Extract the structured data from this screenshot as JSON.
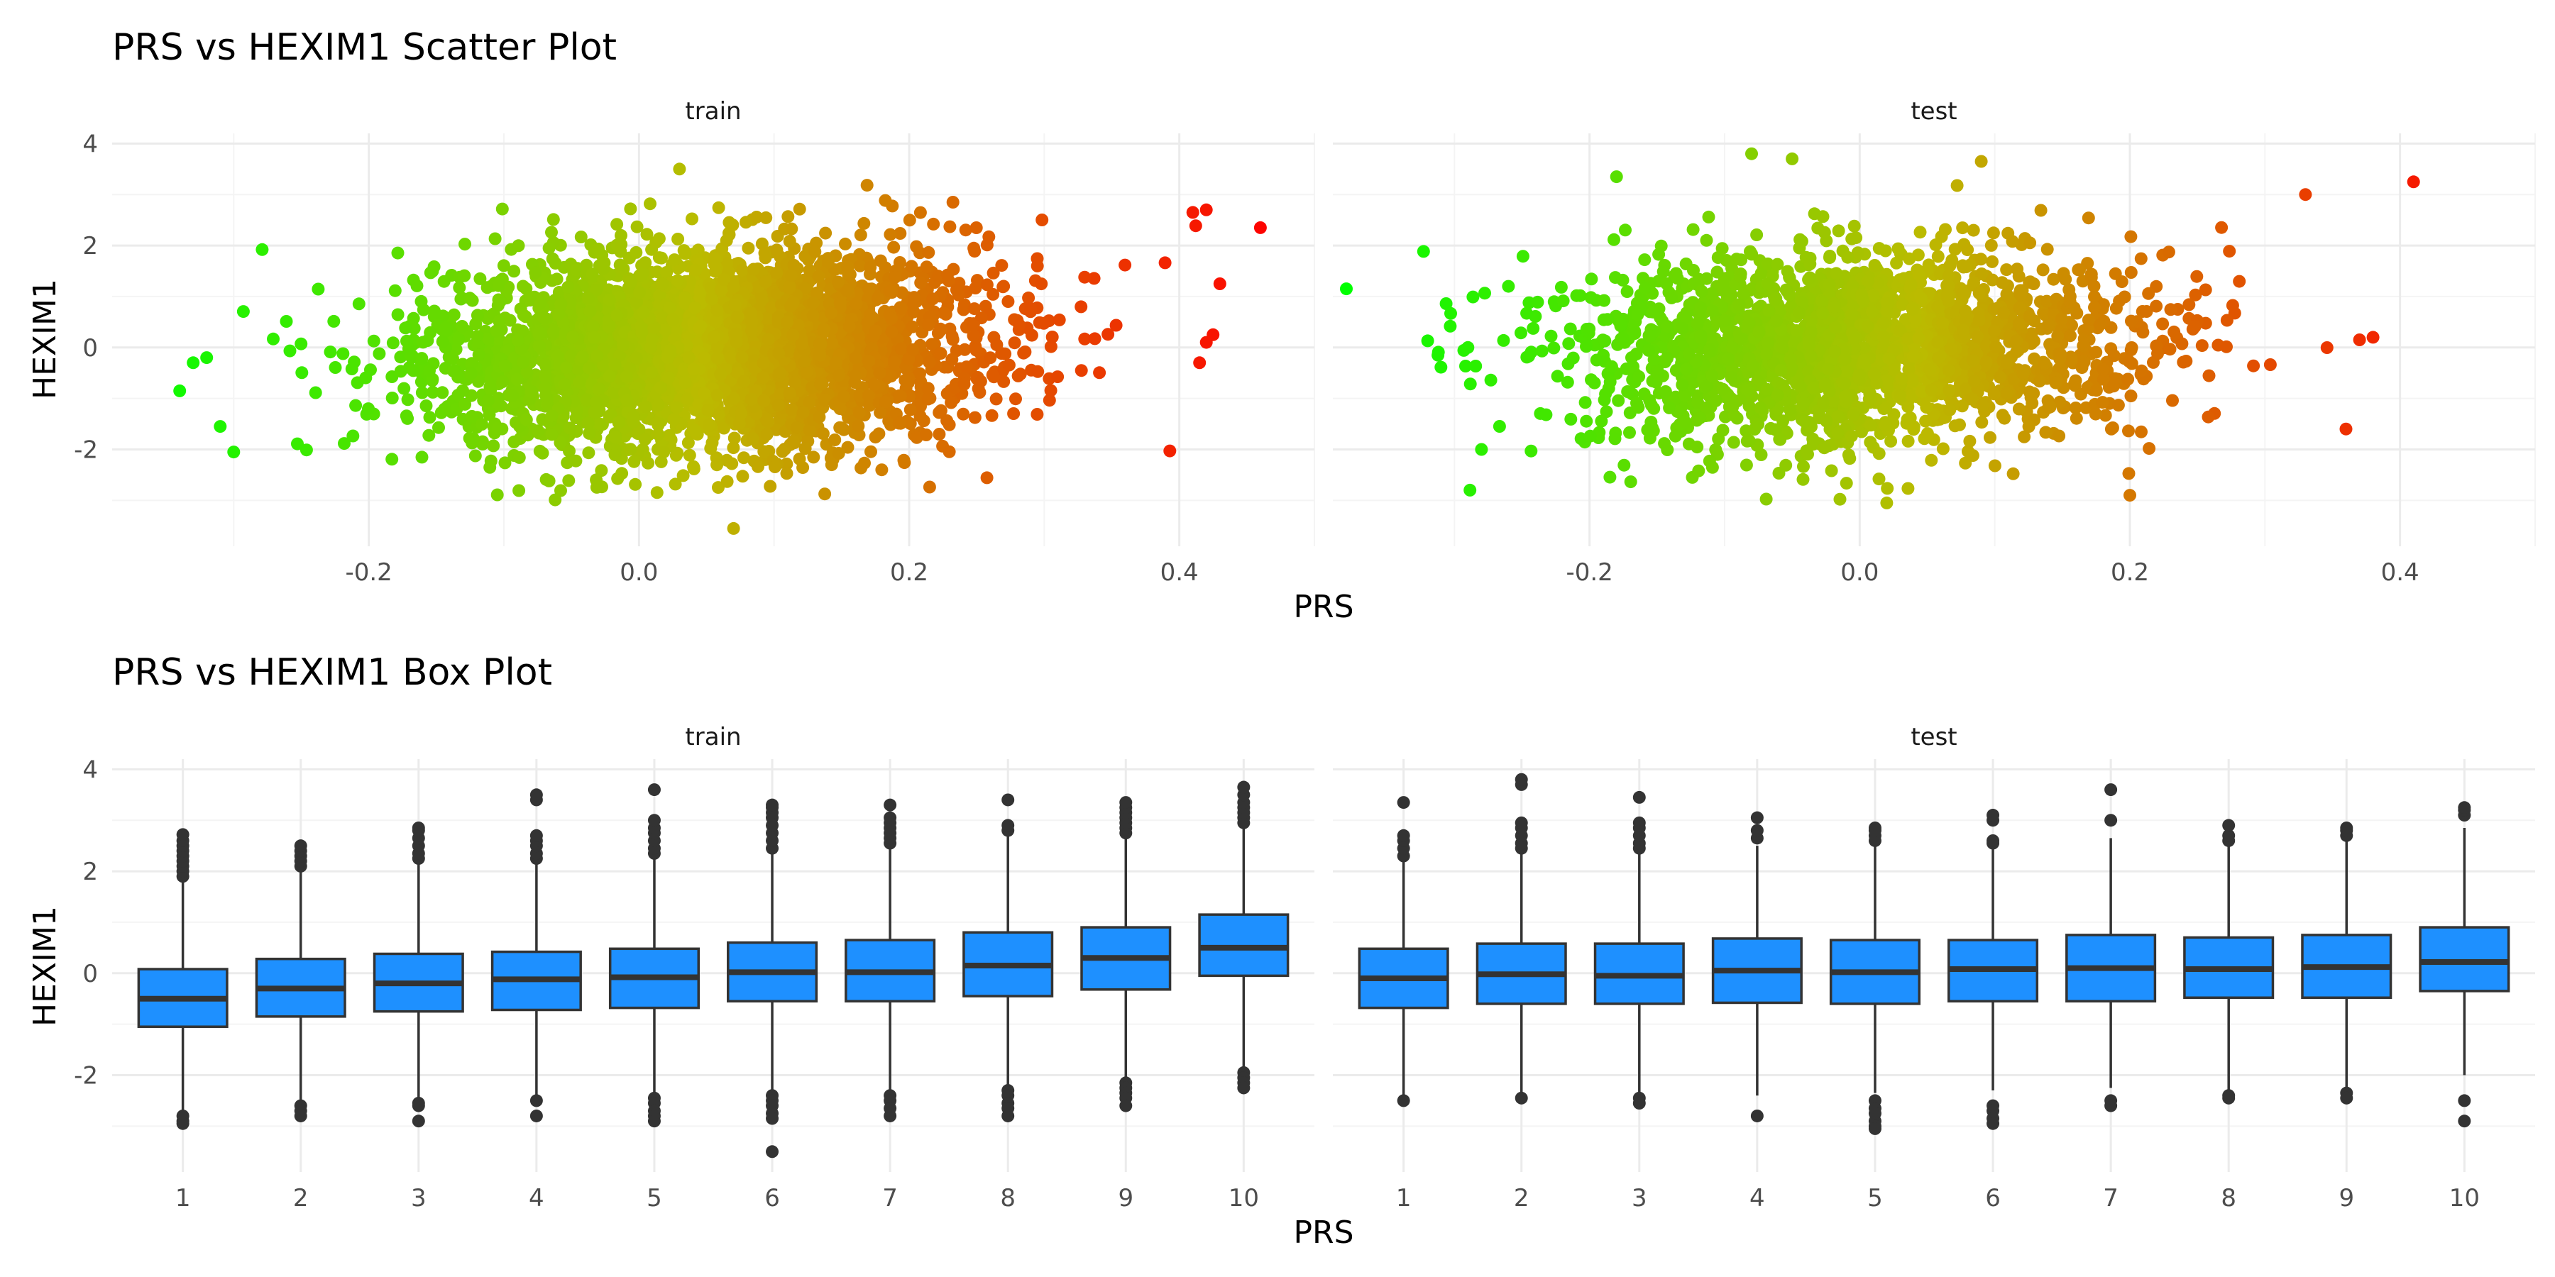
{
  "colors": {
    "box_fill": "#1E90FF",
    "box_line": "#333333",
    "gradient_low": "#00FF00",
    "gradient_mid": "#BBBB00",
    "gradient_high": "#FF0000",
    "grid_major": "#EBEBEB",
    "grid_minor": "#F4F4F4"
  },
  "chart_data": [
    {
      "type": "scatter",
      "title": "PRS vs HEXIM1 Scatter Plot",
      "xlabel": "PRS",
      "ylabel": "HEXIM1",
      "xlim": [
        -0.39,
        0.5
      ],
      "ylim": [
        -3.9,
        4.2
      ],
      "xticks": [
        -0.2,
        0.0,
        0.2,
        0.4
      ],
      "xtick_labels": [
        "-0.2",
        "0.0",
        "0.2",
        "0.4"
      ],
      "yticks": [
        -2,
        0,
        2,
        4
      ],
      "ytick_labels": [
        "-2",
        "0",
        "2",
        "4"
      ],
      "color_by": "PRS",
      "grid": true,
      "legend": "none",
      "panels": [
        {
          "label": "train",
          "cloud": {
            "x_mean": 0.05,
            "x_sd": 0.1,
            "y_mean": 0.0,
            "y_sd": 0.95,
            "slope": 2.5,
            "n": 3600
          },
          "outliers": [
            [
              -0.33,
              -0.3
            ],
            [
              -0.32,
              -0.2
            ],
            [
              -0.34,
              -0.85
            ],
            [
              -0.31,
              -1.55
            ],
            [
              -0.3,
              -2.05
            ],
            [
              0.07,
              -3.55
            ],
            [
              0.46,
              2.35
            ],
            [
              0.42,
              2.7
            ],
            [
              0.41,
              2.65
            ],
            [
              0.425,
              0.25
            ],
            [
              0.42,
              0.1
            ],
            [
              0.415,
              -0.3
            ],
            [
              0.43,
              1.25
            ],
            [
              0.03,
              3.5
            ]
          ]
        },
        {
          "label": "test",
          "cloud": {
            "x_mean": 0.0,
            "x_sd": 0.1,
            "y_mean": 0.0,
            "y_sd": 0.95,
            "slope": 1.5,
            "n": 2200
          },
          "outliers": [
            [
              -0.38,
              1.15
            ],
            [
              -0.29,
              0.0
            ],
            [
              -0.28,
              -2.0
            ],
            [
              -0.26,
              1.2
            ],
            [
              -0.18,
              3.35
            ],
            [
              -0.08,
              3.8
            ],
            [
              -0.05,
              3.7
            ],
            [
              0.09,
              3.65
            ],
            [
              0.41,
              3.25
            ],
            [
              0.33,
              3.0
            ],
            [
              0.38,
              0.2
            ],
            [
              0.37,
              0.15
            ],
            [
              0.36,
              -1.6
            ],
            [
              0.2,
              -2.9
            ],
            [
              0.02,
              -3.05
            ]
          ]
        }
      ]
    },
    {
      "type": "box",
      "title": "PRS vs HEXIM1 Box Plot",
      "xlabel": "PRS",
      "ylabel": "HEXIM1",
      "categories": [
        "1",
        "2",
        "3",
        "4",
        "5",
        "6",
        "7",
        "8",
        "9",
        "10"
      ],
      "ylim": [
        -3.9,
        4.2
      ],
      "yticks": [
        -2,
        0,
        2,
        4
      ],
      "ytick_labels": [
        "-2",
        "0",
        "2",
        "4"
      ],
      "grid": true,
      "legend": "none",
      "panels": [
        {
          "label": "train",
          "boxes": [
            {
              "q1": -1.05,
              "median": -0.5,
              "q3": 0.08,
              "lower": -2.75,
              "upper": 1.78,
              "outliers": [
                1.9,
                2.0,
                2.1,
                2.2,
                2.3,
                2.4,
                2.5,
                2.6,
                2.72,
                -2.8,
                -2.9,
                -2.95
              ]
            },
            {
              "q1": -0.85,
              "median": -0.3,
              "q3": 0.28,
              "lower": -2.55,
              "upper": 2.0,
              "outliers": [
                2.1,
                2.2,
                2.3,
                2.4,
                2.5,
                -2.6,
                -2.7,
                -2.8
              ]
            },
            {
              "q1": -0.75,
              "median": -0.2,
              "q3": 0.38,
              "lower": -2.45,
              "upper": 2.15,
              "outliers": [
                2.25,
                2.35,
                2.5,
                2.65,
                2.8,
                2.85,
                -2.55,
                -2.6,
                -2.9
              ]
            },
            {
              "q1": -0.72,
              "median": -0.12,
              "q3": 0.42,
              "lower": -2.4,
              "upper": 2.15,
              "outliers": [
                2.25,
                2.35,
                2.5,
                2.6,
                2.7,
                3.4,
                3.5,
                -2.5,
                -2.8
              ]
            },
            {
              "q1": -0.68,
              "median": -0.08,
              "q3": 0.48,
              "lower": -2.35,
              "upper": 2.25,
              "outliers": [
                2.35,
                2.45,
                2.6,
                2.75,
                2.85,
                3.0,
                3.6,
                -2.45,
                -2.55,
                -2.7,
                -2.8,
                -2.9
              ]
            },
            {
              "q1": -0.55,
              "median": 0.02,
              "q3": 0.6,
              "lower": -2.3,
              "upper": 2.35,
              "outliers": [
                2.45,
                2.6,
                2.75,
                2.9,
                3.05,
                3.15,
                3.25,
                3.3,
                -2.4,
                -2.5,
                -2.6,
                -2.75,
                -2.85,
                -3.5
              ]
            },
            {
              "q1": -0.55,
              "median": 0.02,
              "q3": 0.65,
              "lower": -2.3,
              "upper": 2.45,
              "outliers": [
                2.55,
                2.65,
                2.75,
                2.85,
                2.95,
                3.05,
                3.3,
                -2.4,
                -2.5,
                -2.65,
                -2.8
              ]
            },
            {
              "q1": -0.45,
              "median": 0.15,
              "q3": 0.8,
              "lower": -2.2,
              "upper": 2.7,
              "outliers": [
                2.8,
                2.9,
                3.4,
                -2.3,
                -2.4,
                -2.55,
                -2.65,
                -2.8
              ]
            },
            {
              "q1": -0.32,
              "median": 0.3,
              "q3": 0.9,
              "lower": -2.05,
              "upper": 2.65,
              "outliers": [
                2.75,
                2.85,
                2.95,
                3.05,
                3.15,
                3.25,
                3.35,
                -2.15,
                -2.25,
                -2.35,
                -2.45,
                -2.6
              ]
            },
            {
              "q1": -0.05,
              "median": 0.5,
              "q3": 1.15,
              "lower": -1.85,
              "upper": 2.85,
              "outliers": [
                2.95,
                3.05,
                3.15,
                3.25,
                3.35,
                3.5,
                3.65,
                -1.95,
                -2.05,
                -2.15,
                -2.25
              ]
            }
          ]
        },
        {
          "label": "test",
          "boxes": [
            {
              "q1": -0.68,
              "median": -0.1,
              "q3": 0.48,
              "lower": -2.4,
              "upper": 2.2,
              "outliers": [
                2.3,
                2.45,
                2.6,
                2.7,
                3.35,
                -2.5
              ]
            },
            {
              "q1": -0.6,
              "median": -0.02,
              "q3": 0.58,
              "lower": -2.35,
              "upper": 2.35,
              "outliers": [
                2.45,
                2.55,
                2.7,
                2.85,
                2.95,
                3.7,
                3.8,
                -2.45
              ]
            },
            {
              "q1": -0.6,
              "median": -0.05,
              "q3": 0.58,
              "lower": -2.35,
              "upper": 2.35,
              "outliers": [
                2.45,
                2.55,
                2.7,
                2.85,
                2.95,
                3.45,
                -2.45,
                -2.55
              ]
            },
            {
              "q1": -0.58,
              "median": 0.05,
              "q3": 0.68,
              "lower": -2.4,
              "upper": 2.5,
              "outliers": [
                2.65,
                2.8,
                3.05,
                -2.8
              ]
            },
            {
              "q1": -0.6,
              "median": 0.02,
              "q3": 0.65,
              "lower": -2.35,
              "upper": 2.5,
              "outliers": [
                2.6,
                2.7,
                2.8,
                2.85,
                -2.5,
                -2.65,
                -2.75,
                -2.9,
                -3.0,
                -3.05
              ]
            },
            {
              "q1": -0.55,
              "median": 0.08,
              "q3": 0.65,
              "lower": -2.3,
              "upper": 2.45,
              "outliers": [
                2.55,
                2.6,
                3.0,
                3.1,
                -2.6,
                -2.7,
                -2.85,
                -2.95
              ]
            },
            {
              "q1": -0.55,
              "median": 0.1,
              "q3": 0.75,
              "lower": -2.25,
              "upper": 2.65,
              "outliers": [
                3.0,
                3.6,
                -2.5,
                -2.6
              ]
            },
            {
              "q1": -0.48,
              "median": 0.08,
              "q3": 0.7,
              "lower": -2.3,
              "upper": 2.55,
              "outliers": [
                2.6,
                2.7,
                2.9,
                -2.4,
                -2.45
              ]
            },
            {
              "q1": -0.48,
              "median": 0.12,
              "q3": 0.75,
              "lower": -2.25,
              "upper": 2.65,
              "outliers": [
                2.7,
                2.8,
                2.85,
                -2.35,
                -2.45
              ]
            },
            {
              "q1": -0.35,
              "median": 0.22,
              "q3": 0.9,
              "lower": -2.0,
              "upper": 2.85,
              "outliers": [
                3.1,
                3.2,
                3.25,
                -2.5,
                -2.9
              ]
            }
          ]
        }
      ]
    }
  ]
}
